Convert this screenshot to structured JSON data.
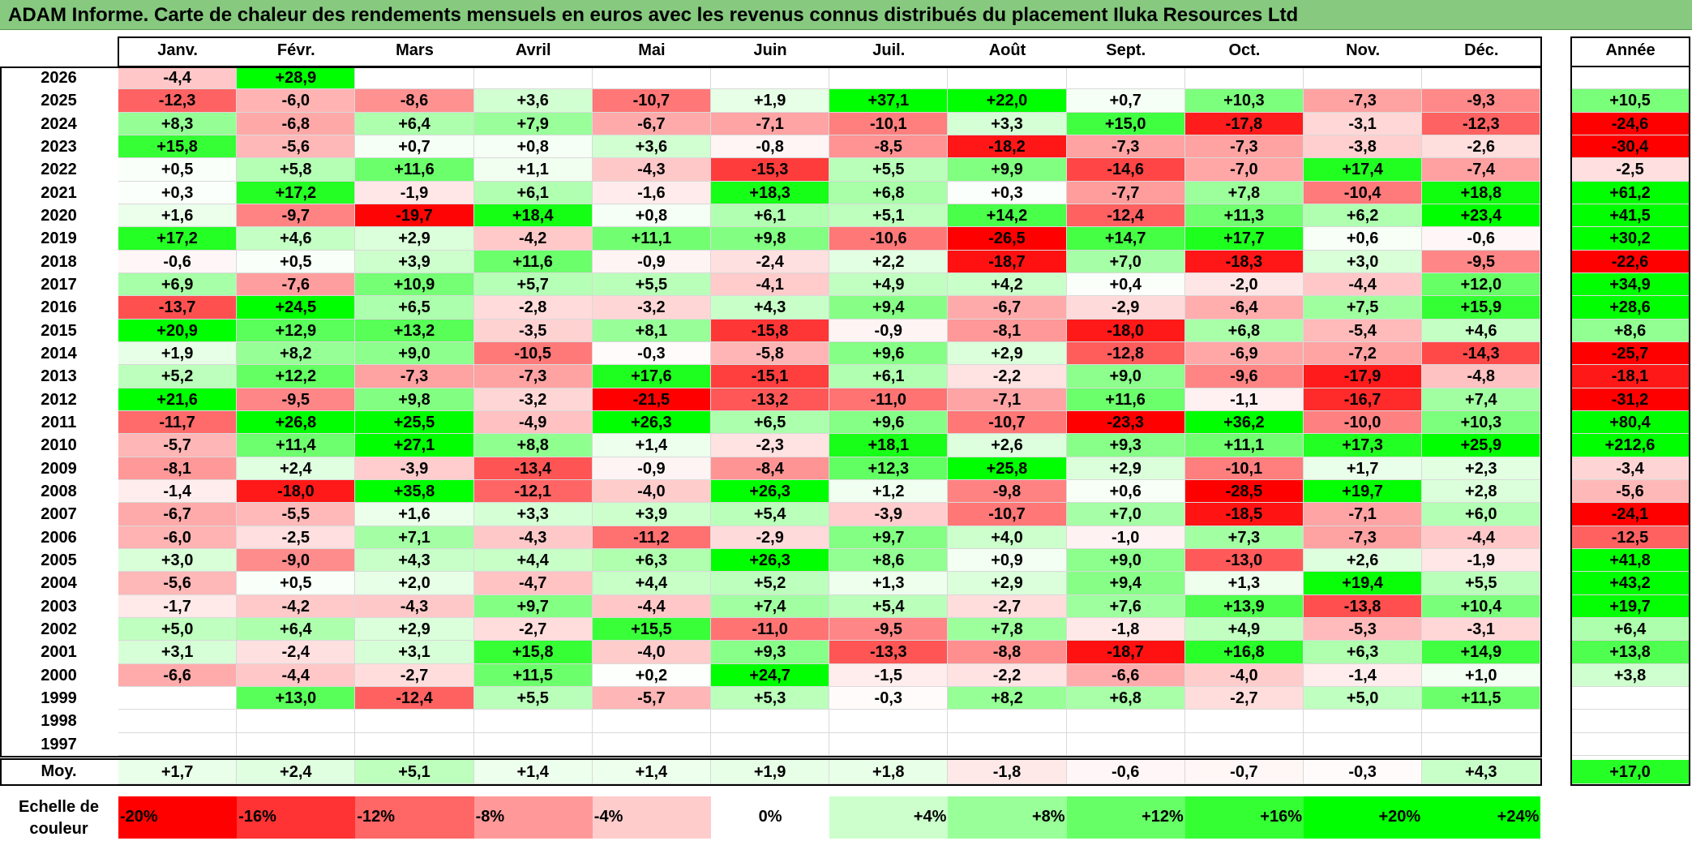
{
  "title": "ADAM Informe. Carte de chaleur des rendements mensuels en euros avec les revenus connus distribués du placement Iluka Resources Ltd",
  "chart_data": {
    "type": "heatmap",
    "columns": [
      "Janv.",
      "Févr.",
      "Mars",
      "Avril",
      "Mai",
      "Juin",
      "Juil.",
      "Août",
      "Sept.",
      "Oct.",
      "Nov.",
      "Déc."
    ],
    "year_column_label": "Année",
    "rows": [
      {
        "year": "2026",
        "values": [
          -4.4,
          28.9,
          null,
          null,
          null,
          null,
          null,
          null,
          null,
          null,
          null,
          null
        ],
        "annual": null
      },
      {
        "year": "2025",
        "values": [
          -12.3,
          -6.0,
          -8.6,
          3.6,
          -10.7,
          1.9,
          37.1,
          22.0,
          0.7,
          10.3,
          -7.3,
          -9.3
        ],
        "annual": 10.5
      },
      {
        "year": "2024",
        "values": [
          8.3,
          -6.8,
          6.4,
          7.9,
          -6.7,
          -7.1,
          -10.1,
          3.3,
          15.0,
          -17.8,
          -3.1,
          -12.3
        ],
        "annual": -24.6
      },
      {
        "year": "2023",
        "values": [
          15.8,
          -5.6,
          0.7,
          0.8,
          3.6,
          -0.8,
          -8.5,
          -18.2,
          -7.3,
          -7.3,
          -3.8,
          -2.6
        ],
        "annual": -30.4
      },
      {
        "year": "2022",
        "values": [
          0.5,
          5.8,
          11.6,
          1.1,
          -4.3,
          -15.3,
          5.5,
          9.9,
          -14.6,
          -7.0,
          17.4,
          -7.4
        ],
        "annual": -2.5
      },
      {
        "year": "2021",
        "values": [
          0.3,
          17.2,
          -1.9,
          6.1,
          -1.6,
          18.3,
          6.8,
          0.3,
          -7.7,
          7.8,
          -10.4,
          18.8
        ],
        "annual": 61.2
      },
      {
        "year": "2020",
        "values": [
          1.6,
          -9.7,
          -19.7,
          18.4,
          0.8,
          6.1,
          5.1,
          14.2,
          -12.4,
          11.3,
          6.2,
          23.4
        ],
        "annual": 41.5
      },
      {
        "year": "2019",
        "values": [
          17.2,
          4.6,
          2.9,
          -4.2,
          11.1,
          9.8,
          -10.6,
          -26.5,
          14.7,
          17.7,
          0.6,
          -0.6
        ],
        "annual": 30.2
      },
      {
        "year": "2018",
        "values": [
          -0.6,
          0.5,
          3.9,
          11.6,
          -0.9,
          -2.4,
          2.2,
          -18.7,
          7.0,
          -18.3,
          3.0,
          -9.5
        ],
        "annual": -22.6
      },
      {
        "year": "2017",
        "values": [
          6.9,
          -7.6,
          10.9,
          5.7,
          5.5,
          -4.1,
          4.9,
          4.2,
          0.4,
          -2.0,
          -4.4,
          12.0
        ],
        "annual": 34.9
      },
      {
        "year": "2016",
        "values": [
          -13.7,
          24.5,
          6.5,
          -2.8,
          -3.2,
          4.3,
          9.4,
          -6.7,
          -2.9,
          -6.4,
          7.5,
          15.9
        ],
        "annual": 28.6
      },
      {
        "year": "2015",
        "values": [
          20.9,
          12.9,
          13.2,
          -3.5,
          8.1,
          -15.8,
          -0.9,
          -8.1,
          -18.0,
          6.8,
          -5.4,
          4.6
        ],
        "annual": 8.6
      },
      {
        "year": "2014",
        "values": [
          1.9,
          8.2,
          9.0,
          -10.5,
          -0.3,
          -5.8,
          9.6,
          2.9,
          -12.8,
          -6.9,
          -7.2,
          -14.3
        ],
        "annual": -25.7
      },
      {
        "year": "2013",
        "values": [
          5.2,
          12.2,
          -7.3,
          -7.3,
          17.6,
          -15.1,
          6.1,
          -2.2,
          9.0,
          -9.6,
          -17.9,
          -4.8
        ],
        "annual": -18.1
      },
      {
        "year": "2012",
        "values": [
          21.6,
          -9.5,
          9.8,
          -3.2,
          -21.5,
          -13.2,
          -11.0,
          -7.1,
          11.6,
          -1.1,
          -16.7,
          7.4
        ],
        "annual": -31.2
      },
      {
        "year": "2011",
        "values": [
          -11.7,
          26.8,
          25.5,
          -4.9,
          26.3,
          6.5,
          9.6,
          -10.7,
          -23.3,
          36.2,
          -10.0,
          10.3
        ],
        "annual": 80.4
      },
      {
        "year": "2010",
        "values": [
          -5.7,
          11.4,
          27.1,
          8.8,
          1.4,
          -2.3,
          18.1,
          2.6,
          9.3,
          11.1,
          17.3,
          25.9
        ],
        "annual": 212.6
      },
      {
        "year": "2009",
        "values": [
          -8.1,
          2.4,
          -3.9,
          -13.4,
          -0.9,
          -8.4,
          12.3,
          25.8,
          2.9,
          -10.1,
          1.7,
          2.3
        ],
        "annual": -3.4
      },
      {
        "year": "2008",
        "values": [
          -1.4,
          -18.0,
          35.8,
          -12.1,
          -4.0,
          26.3,
          1.2,
          -9.8,
          0.6,
          -28.5,
          19.7,
          2.8
        ],
        "annual": -5.6
      },
      {
        "year": "2007",
        "values": [
          -6.7,
          -5.5,
          1.6,
          3.3,
          3.9,
          5.4,
          -3.9,
          -10.7,
          7.0,
          -18.5,
          -7.1,
          6.0
        ],
        "annual": -24.1
      },
      {
        "year": "2006",
        "values": [
          -6.0,
          -2.5,
          7.1,
          -4.3,
          -11.2,
          -2.9,
          9.7,
          4.0,
          -1.0,
          7.3,
          -7.3,
          -4.4
        ],
        "annual": -12.5
      },
      {
        "year": "2005",
        "values": [
          3.0,
          -9.0,
          4.3,
          4.4,
          6.3,
          26.3,
          8.6,
          0.9,
          9.0,
          -13.0,
          2.6,
          -1.9
        ],
        "annual": 41.8
      },
      {
        "year": "2004",
        "values": [
          -5.6,
          0.5,
          2.0,
          -4.7,
          4.4,
          5.2,
          1.3,
          2.9,
          9.4,
          1.3,
          19.4,
          5.5
        ],
        "annual": 43.2
      },
      {
        "year": "2003",
        "values": [
          -1.7,
          -4.2,
          -4.3,
          9.7,
          -4.4,
          7.4,
          5.4,
          -2.7,
          7.6,
          13.9,
          -13.8,
          10.4
        ],
        "annual": 19.7
      },
      {
        "year": "2002",
        "values": [
          5.0,
          6.4,
          2.9,
          -2.7,
          15.5,
          -11.0,
          -9.5,
          7.8,
          -1.8,
          4.9,
          -5.3,
          -3.1
        ],
        "annual": 6.4
      },
      {
        "year": "2001",
        "values": [
          3.1,
          -2.4,
          3.1,
          15.8,
          -4.0,
          9.3,
          -13.3,
          -8.8,
          -18.7,
          16.8,
          6.3,
          14.9
        ],
        "annual": 13.8
      },
      {
        "year": "2000",
        "values": [
          -6.6,
          -4.4,
          -2.7,
          11.5,
          0.2,
          24.7,
          -1.5,
          -2.2,
          -6.6,
          -4.0,
          -1.4,
          1.0
        ],
        "annual": 3.8
      },
      {
        "year": "1999",
        "values": [
          null,
          13.0,
          -12.4,
          5.5,
          -5.7,
          5.3,
          -0.3,
          8.2,
          6.8,
          -2.7,
          5.0,
          11.5
        ],
        "annual": null
      },
      {
        "year": "1998",
        "values": [
          null,
          null,
          null,
          null,
          null,
          null,
          null,
          null,
          null,
          null,
          null,
          null
        ],
        "annual": null
      },
      {
        "year": "1997",
        "values": [
          null,
          null,
          null,
          null,
          null,
          null,
          null,
          null,
          null,
          null,
          null,
          null
        ],
        "annual": null
      }
    ],
    "average": {
      "label": "Moy.",
      "values": [
        1.7,
        2.4,
        5.1,
        1.4,
        1.4,
        1.9,
        1.8,
        -1.8,
        -0.6,
        -0.7,
        -0.3,
        4.3
      ],
      "annual": 17.0
    },
    "color_scale": {
      "label": "Echelle de couleur",
      "steps": [
        {
          "label": "-20%",
          "value": -20,
          "color": "#ff0000"
        },
        {
          "label": "-16%",
          "value": -16,
          "color": "#ff3333"
        },
        {
          "label": "-12%",
          "value": -12,
          "color": "#ff6666"
        },
        {
          "label": "-8%",
          "value": -8,
          "color": "#ff9999"
        },
        {
          "label": "-4%",
          "value": -4,
          "color": "#ffcccc"
        },
        {
          "label": "0%",
          "value": 0,
          "color": "#ffffff"
        },
        {
          "label": "+4%",
          "value": 4,
          "color": "#ccffcc"
        },
        {
          "label": "+8%",
          "value": 8,
          "color": "#99ff99"
        },
        {
          "label": "+12%",
          "value": 12,
          "color": "#66ff66"
        },
        {
          "label": "+16%",
          "value": 16,
          "color": "#33ff33"
        },
        {
          "label": "+20%",
          "value": 20,
          "color": "#00ff00"
        },
        {
          "label": "+24%",
          "value": 24,
          "color": "#00ff00"
        }
      ]
    }
  }
}
